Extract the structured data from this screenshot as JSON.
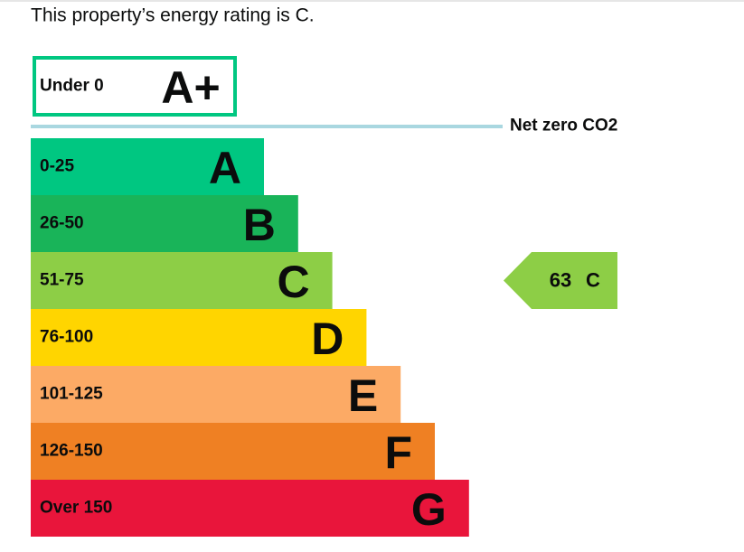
{
  "heading": "This property’s energy rating is C.",
  "top_band": {
    "range": "Under 0",
    "letter": "A+",
    "color": "#00c781"
  },
  "net_zero": {
    "label": "Net zero CO2",
    "color": "#a9d7e0"
  },
  "bands": [
    {
      "range": "0-25",
      "letter": "A",
      "color": "#00c781"
    },
    {
      "range": "26-50",
      "letter": "B",
      "color": "#19b459"
    },
    {
      "range": "51-75",
      "letter": "C",
      "color": "#8dce46"
    },
    {
      "range": "76-100",
      "letter": "D",
      "color": "#ffd500"
    },
    {
      "range": "101-125",
      "letter": "E",
      "color": "#fcaa65"
    },
    {
      "range": "126-150",
      "letter": "F",
      "color": "#ef8023"
    },
    {
      "range": "Over 150",
      "letter": "G",
      "color": "#e9153b"
    }
  ],
  "current": {
    "score": "63",
    "letter": "C",
    "band": 2
  }
}
